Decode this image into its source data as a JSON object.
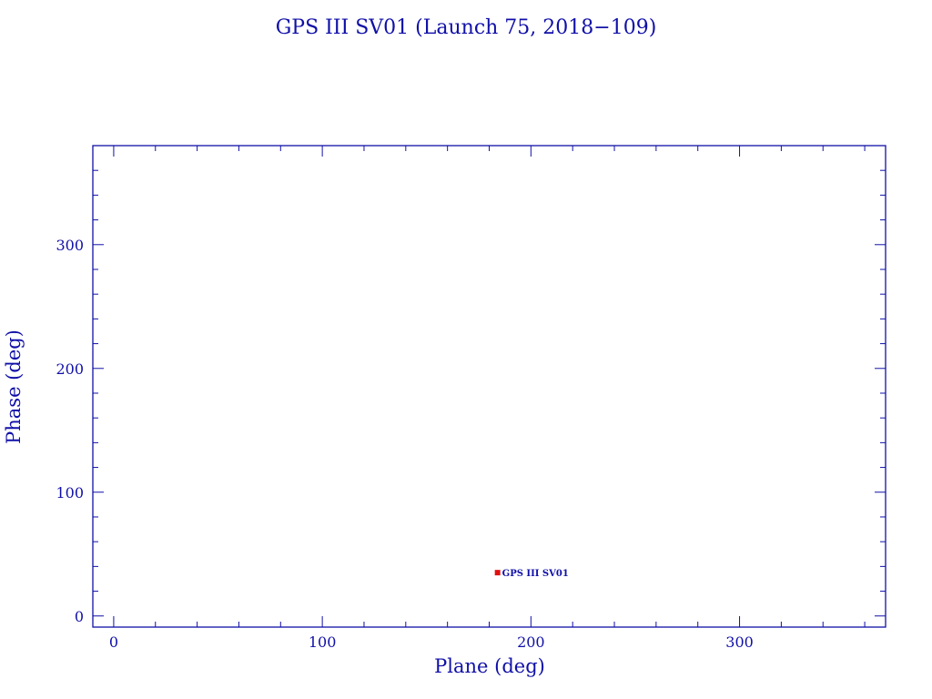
{
  "chart_data": {
    "type": "scatter",
    "title": "GPS III SV01 (Launch 75, 2018−109)",
    "xlabel": "Plane (deg)",
    "ylabel": "Phase (deg)",
    "xlim": [
      -10,
      370
    ],
    "ylim": [
      -9,
      380
    ],
    "xticks": [
      0,
      100,
      200,
      300
    ],
    "yticks": [
      0,
      100,
      200,
      300
    ],
    "minor_tick_step": 20,
    "grid": false,
    "points": [
      {
        "x": 184,
        "y": 35,
        "label": "GPS III SV01"
      }
    ],
    "colors": {
      "axes": "#1010a8",
      "point": "#e01010"
    }
  }
}
